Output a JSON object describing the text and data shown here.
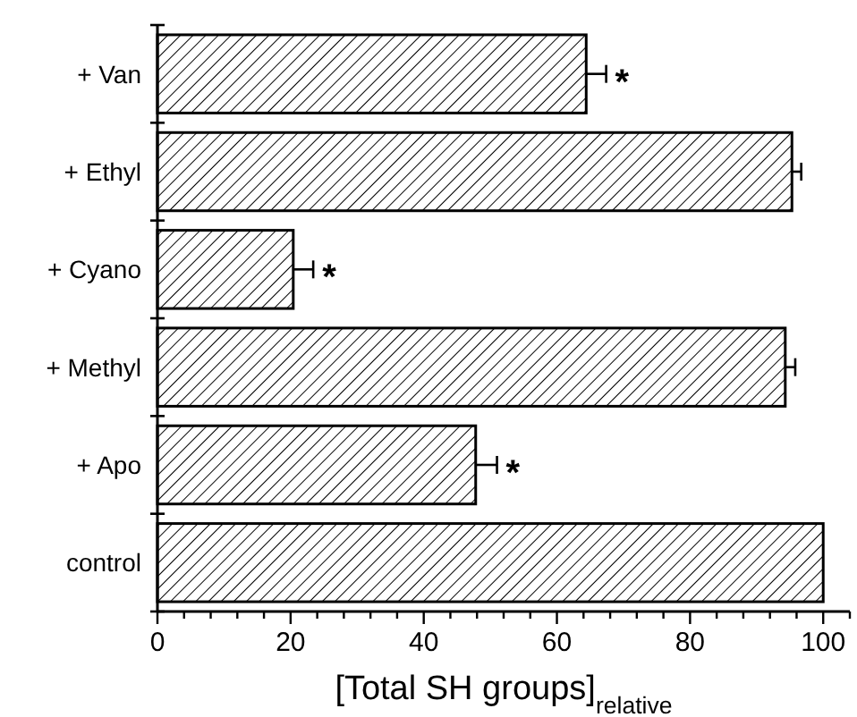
{
  "chart_data": {
    "type": "bar",
    "orientation": "horizontal",
    "categories": [
      "+ Van",
      "+ Ethyl",
      "+ Cyano",
      "+ Methyl",
      "+ Apo",
      "control"
    ],
    "series": [
      {
        "color": "#000000",
        "values": [
          64.4,
          95.3,
          20.4,
          94.3,
          47.8,
          100
        ],
        "errors": [
          3,
          1.4,
          3,
          1.5,
          3.2,
          null
        ]
      }
    ],
    "xlabel": "[Total SH groups]$_{relative}$",
    "xlim": [
      0,
      104
    ],
    "xticks": [
      0,
      {
        "value": 4,
        "label": null
      },
      {
        "value": 8,
        "label": null
      },
      {
        "value": 12,
        "label": null
      },
      {
        "value": 16,
        "label": null
      },
      20,
      {
        "value": 24,
        "label": null
      },
      {
        "value": 28,
        "label": null
      },
      {
        "value": 32,
        "label": null
      },
      {
        "value": 36,
        "label": null
      },
      40,
      {
        "value": 44,
        "label": null
      },
      {
        "value": 48,
        "label": null
      },
      {
        "value": 52,
        "label": null
      },
      {
        "value": 56,
        "label": null
      },
      60,
      {
        "value": 64,
        "label": null
      },
      {
        "value": 68,
        "label": null
      },
      {
        "value": 72,
        "label": null
      },
      {
        "value": 76,
        "label": null
      },
      80,
      {
        "value": 84,
        "label": null
      },
      {
        "value": 88,
        "label": null
      },
      {
        "value": 92,
        "label": null
      },
      {
        "value": 96,
        "label": null
      },
      100,
      {
        "value": 104,
        "label": null
      }
    ],
    "annotations": [
      {
        "text": "*",
        "x": 67.4,
        "y": "+ Van"
      },
      {
        "text": "*",
        "x": 23.4,
        "y": "+ Cyano"
      },
      {
        "text": "*",
        "x": 51,
        "y": "+ Apo"
      }
    ]
  }
}
